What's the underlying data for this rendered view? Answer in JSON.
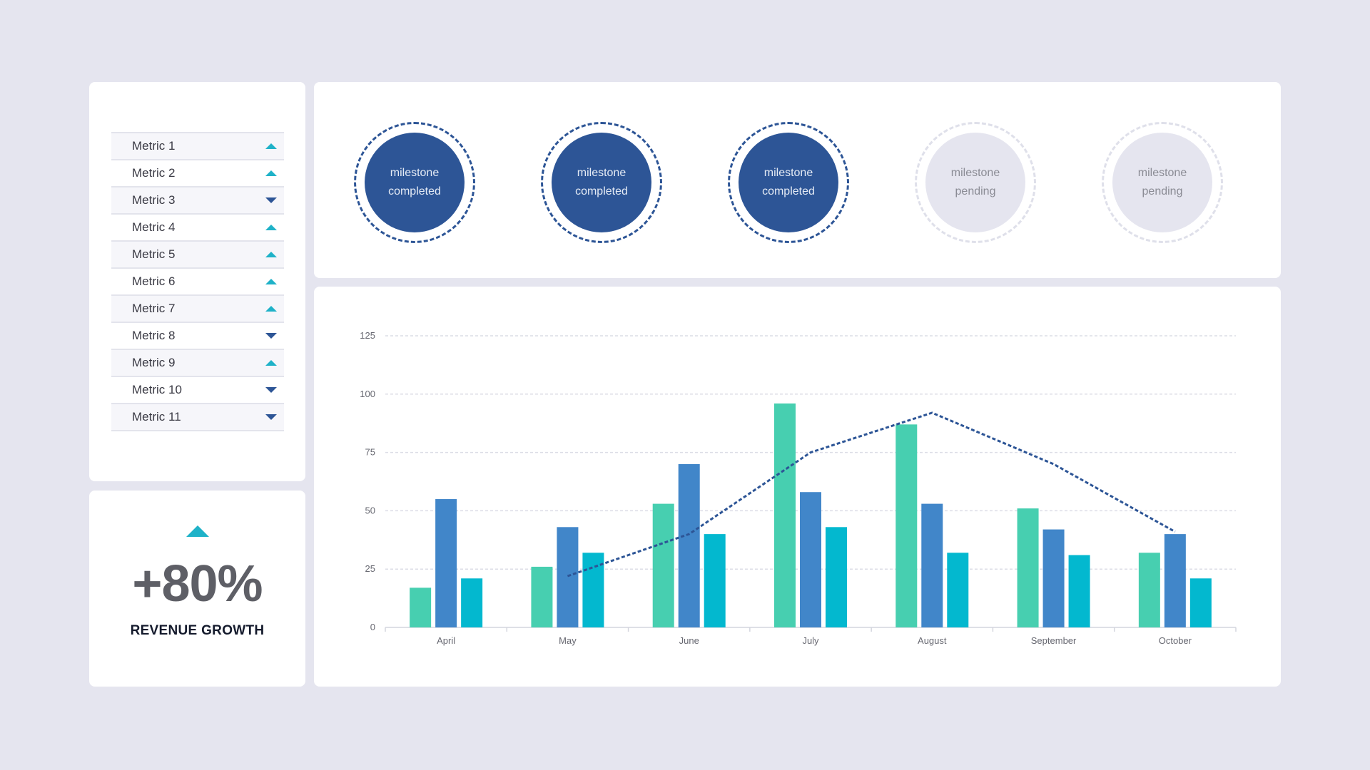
{
  "metrics": {
    "items": [
      {
        "label": "Metric 1",
        "trend": "up"
      },
      {
        "label": "Metric 2",
        "trend": "up"
      },
      {
        "label": "Metric 3",
        "trend": "down"
      },
      {
        "label": "Metric 4",
        "trend": "up"
      },
      {
        "label": "Metric 5",
        "trend": "up"
      },
      {
        "label": "Metric 6",
        "trend": "up"
      },
      {
        "label": "Metric 7",
        "trend": "up"
      },
      {
        "label": "Metric 8",
        "trend": "down"
      },
      {
        "label": "Metric 9",
        "trend": "up"
      },
      {
        "label": "Metric 10",
        "trend": "down"
      },
      {
        "label": "Metric 11",
        "trend": "down"
      }
    ]
  },
  "growth": {
    "value": "+80%",
    "label": "REVENUE GROWTH",
    "trend": "up"
  },
  "milestones": [
    {
      "line1": "milestone",
      "line2": "completed",
      "status": "completed"
    },
    {
      "line1": "milestone",
      "line2": "completed",
      "status": "completed"
    },
    {
      "line1": "milestone",
      "line2": "completed",
      "status": "completed"
    },
    {
      "line1": "milestone",
      "line2": "pending",
      "status": "pending"
    },
    {
      "line1": "milestone",
      "line2": "pending",
      "status": "pending"
    }
  ],
  "colors": {
    "series_1": "#47cfb0",
    "series_2": "#4186c9",
    "series_3": "#03b8cf",
    "line": "#2d5596",
    "accent_up": "#1fb2c8",
    "accent_down": "#2d5596"
  },
  "chart_data": {
    "type": "bar",
    "categories": [
      "April",
      "May",
      "June",
      "July",
      "August",
      "September",
      "October"
    ],
    "series": [
      {
        "values": [
          17,
          26,
          53,
          96,
          87,
          51,
          32
        ]
      },
      {
        "values": [
          55,
          43,
          70,
          58,
          53,
          42,
          40
        ]
      },
      {
        "values": [
          21,
          32,
          40,
          43,
          32,
          31,
          21
        ]
      }
    ],
    "line_series": {
      "values": [
        null,
        22,
        40,
        75,
        92,
        70,
        41
      ],
      "style": "dashed"
    },
    "yticks": [
      0,
      25,
      50,
      75,
      100,
      125
    ],
    "ylim": [
      0,
      125
    ],
    "grid": true
  }
}
